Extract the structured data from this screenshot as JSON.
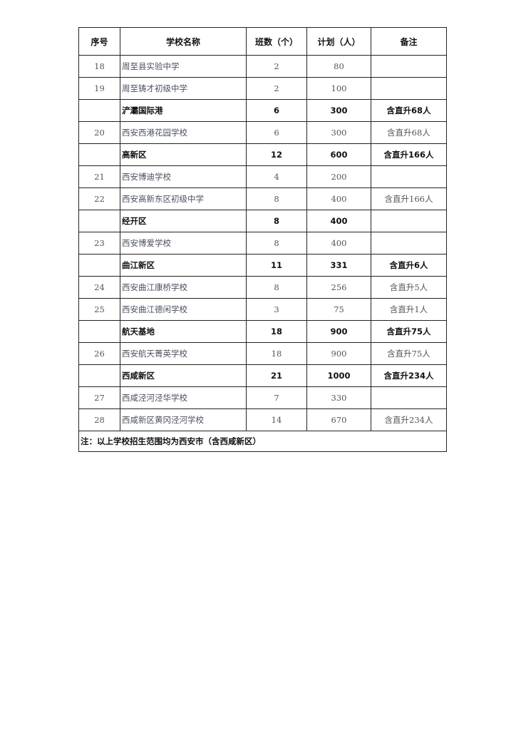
{
  "headers": [
    "序号",
    "学校名称",
    "班数（个）",
    "计划（人）",
    "备注"
  ],
  "rows": [
    {
      "type": "school",
      "no": "18",
      "name": "周至县实验中学",
      "classes": "2",
      "plan": "80",
      "note": ""
    },
    {
      "type": "school",
      "no": "19",
      "name": "周至铸才初级中学",
      "classes": "2",
      "plan": "100",
      "note": ""
    },
    {
      "type": "subtotal",
      "no": "",
      "name": "浐灞国际港",
      "classes": "6",
      "plan": "300",
      "note": "含直升68人"
    },
    {
      "type": "school",
      "no": "20",
      "name": "西安西港花园学校",
      "classes": "6",
      "plan": "300",
      "note": "含直升68人"
    },
    {
      "type": "subtotal",
      "no": "",
      "name": "高新区",
      "classes": "12",
      "plan": "600",
      "note": "含直升166人"
    },
    {
      "type": "school",
      "no": "21",
      "name": "西安博迪学校",
      "classes": "4",
      "plan": "200",
      "note": ""
    },
    {
      "type": "school",
      "no": "22",
      "name": "西安高新东区初级中学",
      "classes": "8",
      "plan": "400",
      "note": "含直升166人"
    },
    {
      "type": "subtotal",
      "no": "",
      "name": "经开区",
      "classes": "8",
      "plan": "400",
      "note": ""
    },
    {
      "type": "school",
      "no": "23",
      "name": "西安博爱学校",
      "classes": "8",
      "plan": "400",
      "note": ""
    },
    {
      "type": "subtotal",
      "no": "",
      "name": "曲江新区",
      "classes": "11",
      "plan": "331",
      "note": "含直升6人"
    },
    {
      "type": "school",
      "no": "24",
      "name": "西安曲江康桥学校",
      "classes": "8",
      "plan": "256",
      "note": "含直升5人"
    },
    {
      "type": "school",
      "no": "25",
      "name": "西安曲江德闲学校",
      "classes": "3",
      "plan": "75",
      "note": "含直升1人"
    },
    {
      "type": "subtotal",
      "no": "",
      "name": "航天基地",
      "classes": "18",
      "plan": "900",
      "note": "含直升75人"
    },
    {
      "type": "school",
      "no": "26",
      "name": "西安航天菁英学校",
      "classes": "18",
      "plan": "900",
      "note": "含直升75人"
    },
    {
      "type": "subtotal",
      "no": "",
      "name": "西咸新区",
      "classes": "21",
      "plan": "1000",
      "note": "含直升234人"
    },
    {
      "type": "school",
      "no": "27",
      "name": "西咸泾河泾华学校",
      "classes": "7",
      "plan": "330",
      "note": ""
    },
    {
      "type": "school",
      "no": "28",
      "name": "西咸新区黄冈泾河学校",
      "classes": "14",
      "plan": "670",
      "note": "含直升234人"
    }
  ],
  "footnote": "注：以上学校招生范围均为西安市（含西咸新区）"
}
